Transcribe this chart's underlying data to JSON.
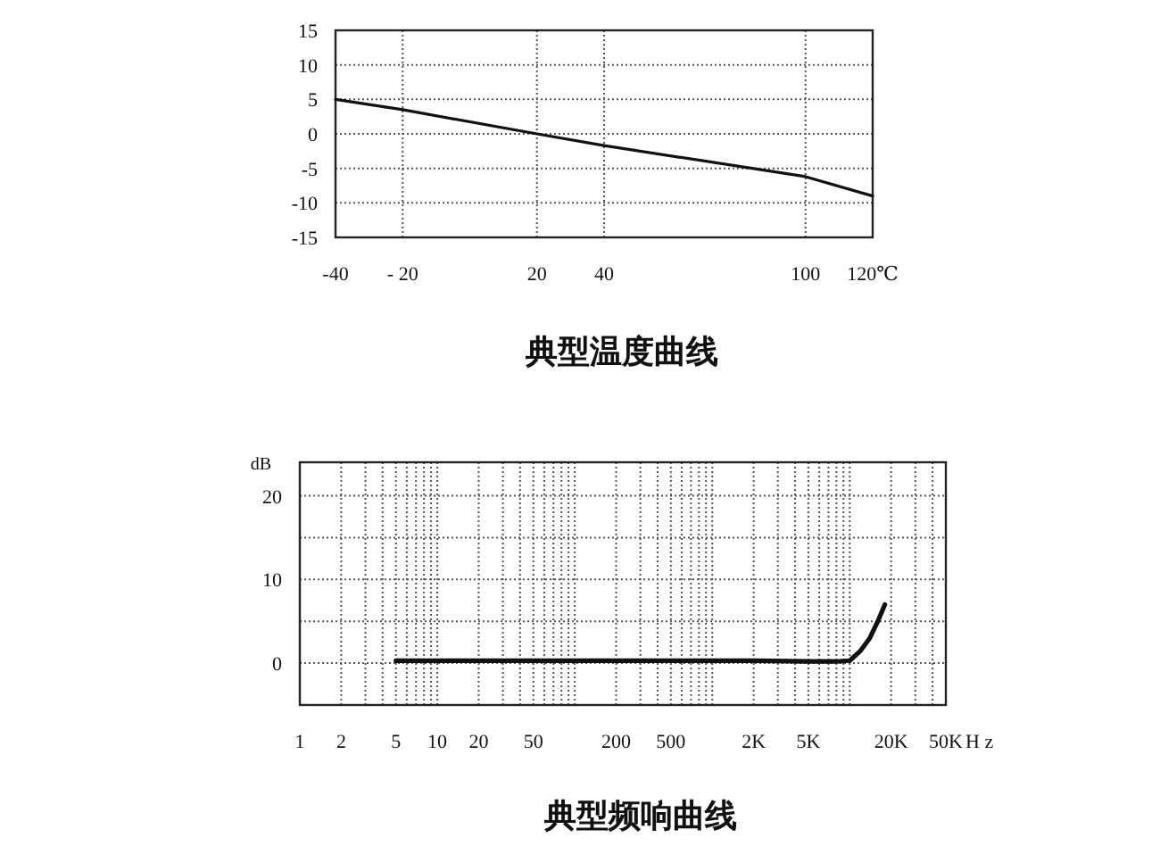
{
  "chart_data": [
    {
      "type": "line",
      "title": "典型温度曲线",
      "x": [
        -40,
        -20,
        20,
        40,
        100,
        120
      ],
      "series": [
        {
          "color": "#111111",
          "values": [
            5,
            3.5,
            0,
            -1.7,
            -6.2,
            -9
          ]
        }
      ],
      "xlim": [
        -40,
        120
      ],
      "xticks": [
        -40,
        {
          "value": -20,
          "label": "- 20"
        },
        20,
        40,
        100,
        {
          "value": 120,
          "label": "120℃"
        }
      ],
      "ylim": [
        -15,
        15
      ],
      "yticks": [
        -15,
        -10,
        -5,
        0,
        5,
        10,
        15
      ],
      "grid": true
    },
    {
      "type": "line",
      "title": "典型频响曲线",
      "ylabel": "dB",
      "log": "x",
      "x": [
        5,
        10,
        20,
        50,
        100,
        200,
        500,
        1000,
        2000,
        5000,
        8000,
        10000,
        12000,
        14000,
        16000,
        18000
      ],
      "series": [
        {
          "color": "#111111",
          "values": [
            0.3,
            0.3,
            0.3,
            0.3,
            0.3,
            0.3,
            0.3,
            0.3,
            0.3,
            0.2,
            0.2,
            0.3,
            1.5,
            3,
            5,
            7
          ]
        }
      ],
      "xlim": [
        1,
        50000
      ],
      "xticks": [
        1,
        2,
        {
          "value": 3,
          "label": null
        },
        {
          "value": 4,
          "label": null
        },
        5,
        {
          "value": 6,
          "label": null
        },
        {
          "value": 7,
          "label": null
        },
        {
          "value": 8,
          "label": null
        },
        {
          "value": 9,
          "label": null
        },
        10,
        20,
        {
          "value": 30,
          "label": null
        },
        {
          "value": 40,
          "label": null
        },
        50,
        {
          "value": 60,
          "label": null
        },
        {
          "value": 70,
          "label": null
        },
        {
          "value": 80,
          "label": null
        },
        {
          "value": 90,
          "label": null
        },
        {
          "value": 100,
          "label": null
        },
        200,
        {
          "value": 300,
          "label": null
        },
        {
          "value": 400,
          "label": null
        },
        500,
        {
          "value": 600,
          "label": null
        },
        {
          "value": 700,
          "label": null
        },
        {
          "value": 800,
          "label": null
        },
        {
          "value": 900,
          "label": null
        },
        {
          "value": 1000,
          "label": null
        },
        {
          "value": 2000,
          "label": "2K"
        },
        {
          "value": 3000,
          "label": null
        },
        {
          "value": 4000,
          "label": null
        },
        {
          "value": 5000,
          "label": "5K"
        },
        {
          "value": 6000,
          "label": null
        },
        {
          "value": 7000,
          "label": null
        },
        {
          "value": 8000,
          "label": null
        },
        {
          "value": 9000,
          "label": null
        },
        {
          "value": 10000,
          "label": null
        },
        {
          "value": 20000,
          "label": "20K"
        },
        {
          "value": 30000,
          "label": null
        },
        {
          "value": 40000,
          "label": null
        },
        {
          "value": 50000,
          "label": "50K"
        }
      ],
      "xlabel": "H z",
      "ylim": [
        -5,
        24
      ],
      "yticks": [
        0,
        {
          "value": 5,
          "label": null
        },
        10,
        {
          "value": 15,
          "label": null
        },
        20
      ],
      "grid": true
    }
  ]
}
